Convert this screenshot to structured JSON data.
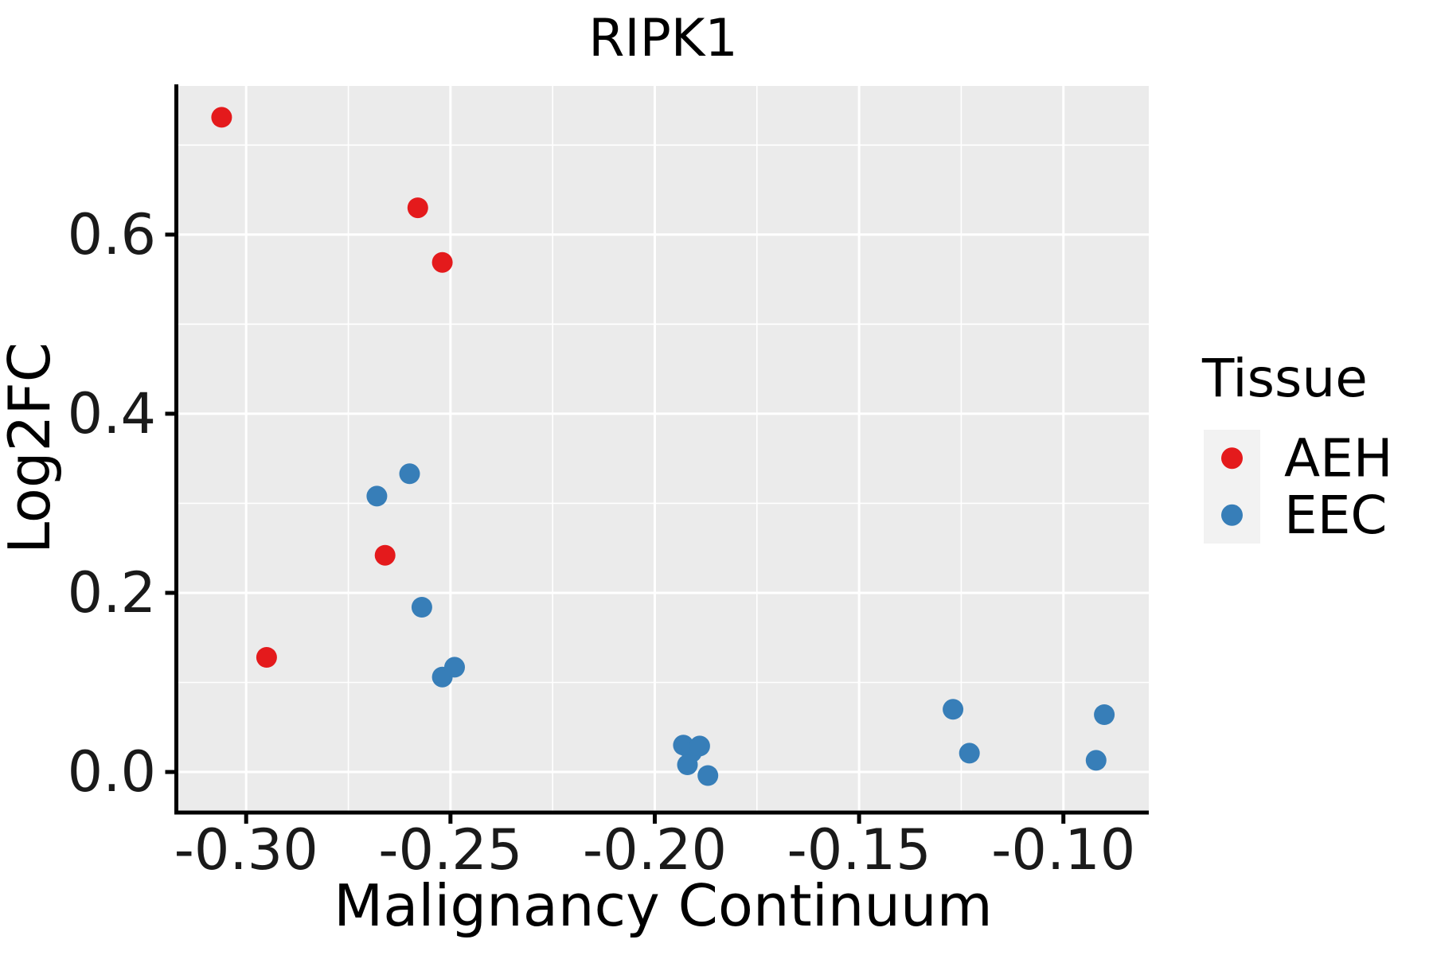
{
  "title": "RIPK1",
  "axes": {
    "x": {
      "label": "Malignancy Continuum",
      "range": [
        -0.3166,
        -0.0791
      ],
      "major_ticks": [
        {
          "value": -0.3,
          "label": "-0.30"
        },
        {
          "value": -0.25,
          "label": "-0.25"
        },
        {
          "value": -0.2,
          "label": "-0.20"
        },
        {
          "value": -0.15,
          "label": "-0.15"
        },
        {
          "value": -0.1,
          "label": "-0.10"
        }
      ],
      "minor_ticks": [
        -0.275,
        -0.225,
        -0.175,
        -0.125
      ]
    },
    "y": {
      "label": "Log2FC",
      "range": [
        -0.0444,
        0.766
      ],
      "major_ticks": [
        {
          "value": 0.0,
          "label": "0.0"
        },
        {
          "value": 0.2,
          "label": "0.2"
        },
        {
          "value": 0.4,
          "label": "0.4"
        },
        {
          "value": 0.6,
          "label": "0.6"
        }
      ],
      "minor_ticks": [
        0.1,
        0.3,
        0.5,
        0.7
      ]
    }
  },
  "legend": {
    "title": "Tissue",
    "entries": [
      {
        "label": "AEH",
        "color": "#E41A1C"
      },
      {
        "label": "EEC",
        "color": "#377EB8"
      }
    ]
  },
  "style": {
    "panel_background": "#EBEBEB",
    "grid_color": "#FFFFFF",
    "axis_color": "#000000",
    "legend_key_background": "#F2F2F2",
    "point_radius": 13
  },
  "chart_data": {
    "type": "scatter",
    "title": "RIPK1",
    "xlabel": "Malignancy Continuum",
    "ylabel": "Log2FC",
    "xlim": [
      -0.317,
      -0.079
    ],
    "ylim": [
      -0.044,
      0.766
    ],
    "grid": true,
    "legend_title": "Tissue",
    "legend_position": "right",
    "series": [
      {
        "name": "AEH",
        "color": "#E41A1C",
        "points": [
          [
            -0.306,
            0.731
          ],
          [
            -0.258,
            0.63
          ],
          [
            -0.252,
            0.569
          ],
          [
            -0.266,
            0.242
          ],
          [
            -0.295,
            0.128
          ]
        ]
      },
      {
        "name": "EEC",
        "color": "#377EB8",
        "points": [
          [
            -0.268,
            0.308
          ],
          [
            -0.26,
            0.333
          ],
          [
            -0.257,
            0.184
          ],
          [
            -0.252,
            0.106
          ],
          [
            -0.249,
            0.117
          ],
          [
            -0.193,
            0.03
          ],
          [
            -0.191,
            0.022
          ],
          [
            -0.189,
            0.029
          ],
          [
            -0.192,
            0.008
          ],
          [
            -0.187,
            -0.004
          ],
          [
            -0.127,
            0.07
          ],
          [
            -0.123,
            0.021
          ],
          [
            -0.09,
            0.064
          ],
          [
            -0.092,
            0.013
          ]
        ]
      }
    ]
  }
}
